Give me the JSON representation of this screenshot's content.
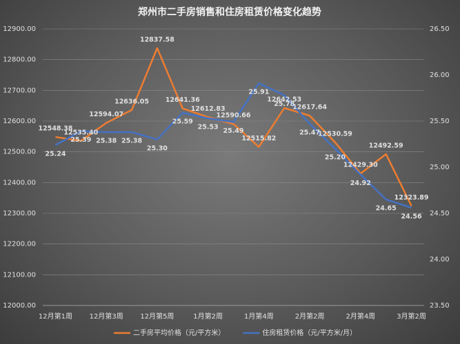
{
  "chart_data": {
    "type": "line",
    "title": "郑州市二手房销售和住房租赁价格变化趋势",
    "categories": [
      "12月第1周",
      null,
      "12月第3周",
      null,
      "12月第5周",
      null,
      "1月第2周",
      null,
      "1月第4周",
      null,
      "2月第2周",
      null,
      "2月第4周",
      null,
      "3月第2周"
    ],
    "series": [
      {
        "name": "二手房平均价格（元/平方米）",
        "color": "#ed7d31",
        "axis": "y",
        "values": [
          12548.38,
          12535.4,
          12594.07,
          12636.05,
          12837.58,
          12641.36,
          12612.83,
          12590.66,
          12515.82,
          12642.53,
          12617.64,
          12530.59,
          12429.3,
          12492.59,
          12323.89
        ],
        "value_labels": [
          "12548.38",
          "12535.40",
          "12594.07",
          "12636.05",
          "12837.58",
          "12641.36",
          "12612.83",
          "12590.66",
          "12515.82",
          "12642.53",
          "12617.64",
          "12530.59",
          "12429.30",
          "12492.59",
          "12323.89"
        ]
      },
      {
        "name": "住房租赁价格（元/平方米/月）",
        "color": "#4472c4",
        "axis": "y2",
        "values": [
          25.24,
          25.39,
          25.38,
          25.38,
          25.3,
          25.59,
          25.53,
          25.49,
          25.91,
          25.78,
          25.47,
          25.2,
          24.92,
          24.65,
          24.56
        ],
        "value_labels": [
          "25.24",
          "25.39",
          "25.38",
          "25.38",
          "25.30",
          "25.59",
          "25.53",
          "25.49",
          "25.91",
          "25.78",
          "25.47",
          "25.20",
          "24.92",
          "24.65",
          "24.56"
        ]
      }
    ],
    "ylim": [
      12000,
      12900
    ],
    "yticks": [
      {
        "value": 12000,
        "label": "12000.00"
      },
      {
        "value": 12100,
        "label": "12100.00"
      },
      {
        "value": 12200,
        "label": "12200.00"
      },
      {
        "value": 12300,
        "label": "12300.00"
      },
      {
        "value": 12400,
        "label": "12400.00"
      },
      {
        "value": 12500,
        "label": "12500.00"
      },
      {
        "value": 12600,
        "label": "12600.00"
      },
      {
        "value": 12700,
        "label": "12700.00"
      },
      {
        "value": 12800,
        "label": "12800.00"
      },
      {
        "value": 12900,
        "label": "12900.00"
      }
    ],
    "y2lim": [
      23.5,
      26.5
    ],
    "y2ticks": [
      {
        "value": 23.5,
        "label": "23.50"
      },
      {
        "value": 24,
        "label": "24.00"
      },
      {
        "value": 24.5,
        "label": "24.50"
      },
      {
        "value": 25,
        "label": "25.00"
      },
      {
        "value": 25.5,
        "label": "25.50"
      },
      {
        "value": 26,
        "label": "26.00"
      },
      {
        "value": 26.5,
        "label": "26.50"
      }
    ],
    "grid": true,
    "legend": "bottom"
  }
}
